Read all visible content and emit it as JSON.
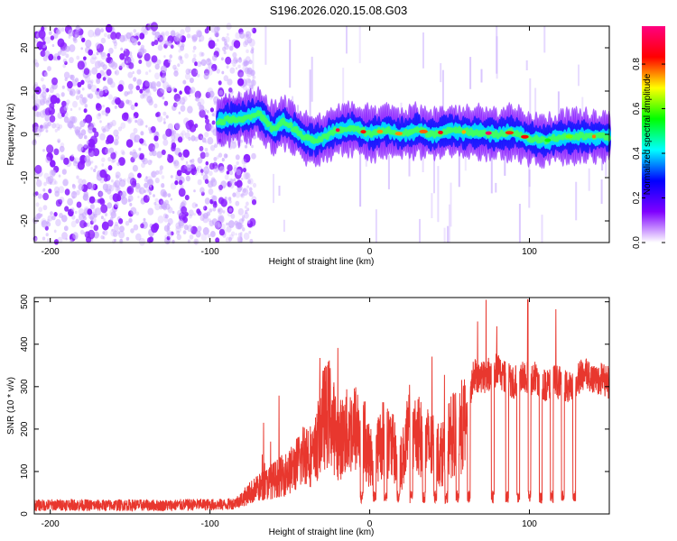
{
  "figure": {
    "title": "S196.2026.020.15.08.G03"
  },
  "colorbar": {
    "label": "Normalized spectral amplitude",
    "ticks": [
      0.0,
      0.2,
      0.4,
      0.6,
      0.8
    ],
    "tick_labels": [
      "0.0",
      "0.2",
      "0.4",
      "0.6",
      "0.8"
    ],
    "range": [
      0.0,
      0.97
    ],
    "stops": [
      "#ffffff",
      "#7f00ff",
      "#0000ff",
      "#00ffff",
      "#00ff00",
      "#ffff00",
      "#ff0000",
      "#ff0080"
    ]
  },
  "chart_data": [
    {
      "type": "heatmap",
      "xlabel": "Height of straight line (km)",
      "ylabel": "Frequency (Hz)",
      "xlim": [
        -210,
        150
      ],
      "ylim": [
        -25,
        25
      ],
      "xticks": [
        -200,
        -100,
        0,
        100
      ],
      "xtick_labels": [
        "-200",
        "-100",
        "0",
        "100"
      ],
      "yticks": [
        -20,
        -10,
        0,
        10,
        20
      ],
      "ytick_labels": [
        "-20",
        "-10",
        "0",
        "10",
        "20"
      ],
      "noise_region_x": [
        -210,
        -80
      ],
      "ridge": {
        "x": [
          -95,
          -85,
          -75,
          -70,
          -65,
          -60,
          -55,
          -50,
          -45,
          -40,
          -35,
          -30,
          -20,
          -10,
          0,
          10,
          20,
          30,
          40,
          50,
          60,
          70,
          80,
          90,
          100,
          110,
          120,
          130,
          140,
          150
        ],
        "freq": [
          3,
          3.5,
          4,
          5,
          3,
          1,
          3,
          2,
          0.5,
          -1,
          -1.5,
          -1,
          1,
          1.5,
          0,
          1,
          0,
          1,
          0,
          1,
          0.5,
          0.5,
          0,
          0.5,
          -1,
          -1.5,
          -0.5,
          -0.5,
          -0.5,
          -0.5
        ],
        "amplitude_note": "peak normalized amplitude ~0.97 near x=100-150"
      }
    },
    {
      "type": "line",
      "xlabel": "Height of straight line (km)",
      "ylabel": "SNR (10 * v/v)",
      "xlim": [
        -210,
        150
      ],
      "ylim": [
        0,
        510
      ],
      "xticks": [
        -200,
        -100,
        0,
        100
      ],
      "xtick_labels": [
        "-200",
        "-100",
        "0",
        "100"
      ],
      "yticks": [
        0,
        100,
        200,
        300,
        400,
        500
      ],
      "ytick_labels": [
        "0",
        "100",
        "200",
        "300",
        "400",
        "500"
      ],
      "series": [
        {
          "name": "SNR",
          "color": "#e8372e",
          "x": [
            -210,
            -190,
            -170,
            -150,
            -130,
            -110,
            -90,
            -85,
            -80,
            -75,
            -70,
            -65,
            -60,
            -55,
            -50,
            -45,
            -40,
            -35,
            -30,
            -25,
            -20,
            -15,
            -10,
            -5,
            0,
            5,
            10,
            15,
            20,
            25,
            30,
            35,
            40,
            45,
            50,
            55,
            60,
            65,
            70,
            75,
            80,
            85,
            90,
            95,
            100,
            105,
            110,
            115,
            120,
            125,
            130,
            135,
            140,
            145,
            150
          ],
          "values": [
            20,
            22,
            20,
            21,
            20,
            22,
            22,
            25,
            35,
            50,
            60,
            70,
            80,
            90,
            100,
            120,
            150,
            130,
            220,
            240,
            170,
            190,
            200,
            210,
            130,
            160,
            180,
            150,
            120,
            200,
            180,
            170,
            150,
            140,
            180,
            200,
            210,
            330,
            320,
            330,
            340,
            320,
            310,
            330,
            320,
            320,
            300,
            310,
            310,
            300,
            320,
            330,
            320,
            320,
            310
          ],
          "range_annotation": "spikes up to ~510 near x=100"
        }
      ]
    }
  ]
}
